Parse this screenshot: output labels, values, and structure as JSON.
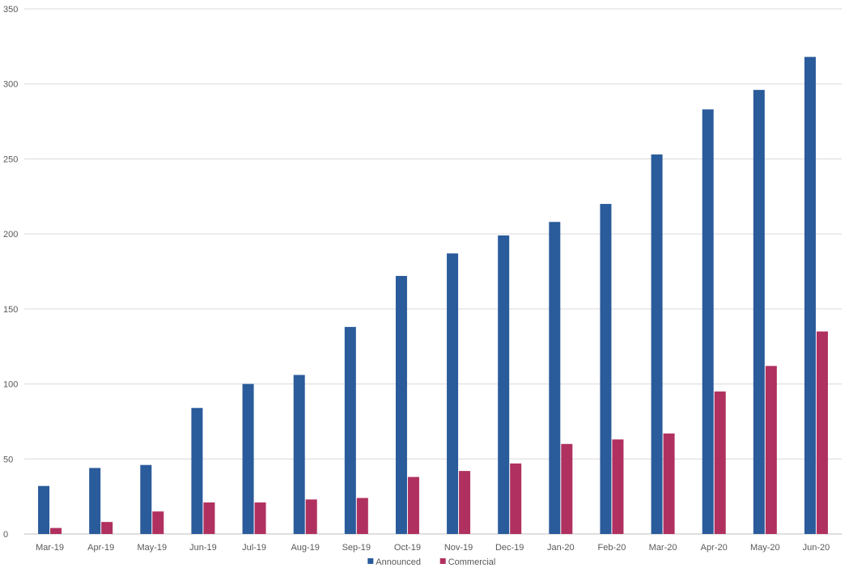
{
  "chart_data": {
    "type": "bar",
    "title": "",
    "xlabel": "",
    "ylabel": "",
    "ylim": [
      0,
      350
    ],
    "yticks": [
      0,
      50,
      100,
      150,
      200,
      250,
      300,
      350
    ],
    "grid": true,
    "legend_position": "bottom",
    "categories": [
      "Mar-19",
      "Apr-19",
      "May-19",
      "Jun-19",
      "Jul-19",
      "Aug-19",
      "Sep-19",
      "Oct-19",
      "Nov-19",
      "Dec-19",
      "Jan-20",
      "Feb-20",
      "Mar-20",
      "Apr-20",
      "May-20",
      "Jun-20"
    ],
    "series": [
      {
        "name": "Announced",
        "color": "#2a5b9b",
        "values": [
          32,
          44,
          46,
          84,
          100,
          106,
          138,
          172,
          187,
          199,
          208,
          220,
          253,
          283,
          296,
          318
        ]
      },
      {
        "name": "Commercial",
        "color": "#b0305f",
        "values": [
          4,
          8,
          15,
          21,
          21,
          23,
          24,
          38,
          42,
          47,
          60,
          63,
          67,
          95,
          112,
          135
        ]
      }
    ]
  }
}
